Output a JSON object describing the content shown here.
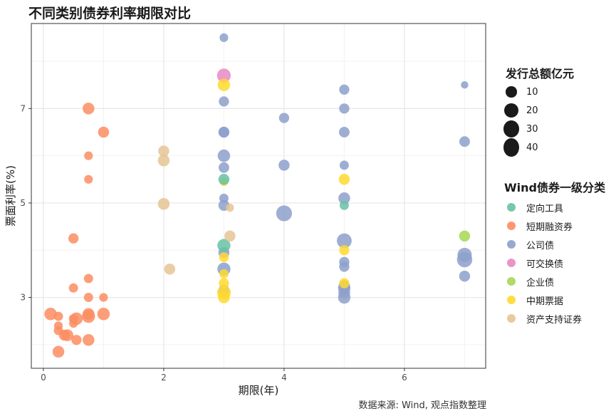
{
  "title": "不同类别债券利率期限对比",
  "caption": "数据来源: Wind, 观点指数整理",
  "colors": {
    "定向工具": "#66c2a5",
    "短期融资券": "#fc8d62",
    "公司债": "#8da0cb",
    "可交换债": "#e78ac3",
    "企业债": "#a6d854",
    "中期票据": "#ffd92f",
    "资产支持证券": "#e5c494"
  },
  "chart_data": {
    "type": "scatter",
    "title": "不同类别债券利率期限对比",
    "xlabel": "期限(年)",
    "ylabel": "票面利率(%)",
    "xlim": [
      -0.2,
      7.35
    ],
    "ylim": [
      1.5,
      8.8
    ],
    "xticks": [
      0,
      2,
      4,
      6
    ],
    "yticks": [
      3,
      5,
      7
    ],
    "grid": true,
    "size_legend": {
      "title": "发行总额亿元",
      "values": [
        10,
        20,
        30,
        40
      ]
    },
    "color_legend": {
      "title": "Wind债券一级分类",
      "categories": [
        "定向工具",
        "短期融资券",
        "公司债",
        "可交换债",
        "企业债",
        "中期票据",
        "资产支持证券"
      ]
    },
    "series": [
      {
        "name": "短期融资券",
        "points": [
          [
            0.75,
            7.0,
            12
          ],
          [
            1.0,
            6.5,
            10
          ],
          [
            0.75,
            6.0,
            5
          ],
          [
            0.75,
            5.5,
            5
          ],
          [
            0.5,
            4.25,
            8
          ],
          [
            0.75,
            3.4,
            6
          ],
          [
            0.5,
            3.2,
            6
          ],
          [
            0.75,
            3.0,
            6
          ],
          [
            1.0,
            3.0,
            5
          ],
          [
            0.12,
            2.65,
            14
          ],
          [
            0.25,
            2.6,
            6
          ],
          [
            0.75,
            2.65,
            12
          ],
          [
            0.75,
            2.6,
            16
          ],
          [
            1.0,
            2.65,
            14
          ],
          [
            0.5,
            2.55,
            6
          ],
          [
            0.55,
            2.55,
            14
          ],
          [
            0.25,
            2.4,
            5
          ],
          [
            0.5,
            2.45,
            5
          ],
          [
            0.25,
            2.3,
            6
          ],
          [
            0.35,
            2.2,
            10
          ],
          [
            0.4,
            2.2,
            12
          ],
          [
            0.55,
            2.1,
            8
          ],
          [
            0.75,
            2.1,
            12
          ],
          [
            0.25,
            1.85,
            12
          ]
        ]
      },
      {
        "name": "公司债",
        "points": [
          [
            3.0,
            8.5,
            5
          ],
          [
            5.0,
            7.4,
            8
          ],
          [
            7.0,
            7.5,
            3
          ],
          [
            3.0,
            7.15,
            8
          ],
          [
            5.0,
            7.0,
            8
          ],
          [
            4.0,
            6.8,
            8
          ],
          [
            3.0,
            6.5,
            10
          ],
          [
            3.0,
            6.5,
            8
          ],
          [
            5.0,
            6.5,
            9
          ],
          [
            7.0,
            6.3,
            9
          ],
          [
            3.0,
            6.0,
            14
          ],
          [
            3.0,
            5.75,
            9
          ],
          [
            4.0,
            5.8,
            10
          ],
          [
            5.0,
            5.8,
            6
          ],
          [
            3.0,
            5.1,
            6
          ],
          [
            5.0,
            5.1,
            12
          ],
          [
            3.0,
            4.95,
            10
          ],
          [
            4.0,
            4.78,
            26
          ],
          [
            5.0,
            4.2,
            22
          ],
          [
            3.0,
            3.95,
            10
          ],
          [
            7.0,
            3.9,
            20
          ],
          [
            7.0,
            3.8,
            24
          ],
          [
            5.0,
            3.75,
            8
          ],
          [
            5.0,
            3.65,
            8
          ],
          [
            3.0,
            3.6,
            16
          ],
          [
            7.0,
            3.45,
            10
          ],
          [
            5.0,
            3.25,
            10
          ],
          [
            5.0,
            3.2,
            14
          ],
          [
            3.0,
            3.15,
            10
          ],
          [
            5.0,
            3.1,
            12
          ],
          [
            5.0,
            3.0,
            14
          ]
        ]
      },
      {
        "name": "可交换债",
        "points": [
          [
            3.0,
            7.7,
            18
          ]
        ]
      },
      {
        "name": "中期票据",
        "points": [
          [
            3.0,
            7.5,
            14
          ],
          [
            3.0,
            5.45,
            5
          ],
          [
            5.0,
            5.5,
            10
          ],
          [
            5.0,
            4.0,
            8
          ],
          [
            3.0,
            3.85,
            7
          ],
          [
            3.0,
            3.5,
            6
          ],
          [
            3.0,
            3.3,
            8
          ],
          [
            5.0,
            3.3,
            8
          ],
          [
            3.0,
            3.1,
            18
          ],
          [
            3.0,
            3.0,
            12
          ]
        ]
      },
      {
        "name": "定向工具",
        "points": [
          [
            3.0,
            5.5,
            10
          ],
          [
            3.0,
            4.1,
            16
          ],
          [
            5.0,
            4.95,
            6
          ]
        ]
      },
      {
        "name": "企业债",
        "points": [
          [
            7.0,
            4.3,
            10
          ]
        ]
      },
      {
        "name": "资产支持证券",
        "points": [
          [
            2.0,
            6.1,
            10
          ],
          [
            2.0,
            5.9,
            12
          ],
          [
            2.0,
            4.98,
            12
          ],
          [
            3.1,
            4.9,
            4
          ],
          [
            3.1,
            4.3,
            10
          ],
          [
            2.1,
            3.6,
            10
          ]
        ]
      }
    ]
  }
}
